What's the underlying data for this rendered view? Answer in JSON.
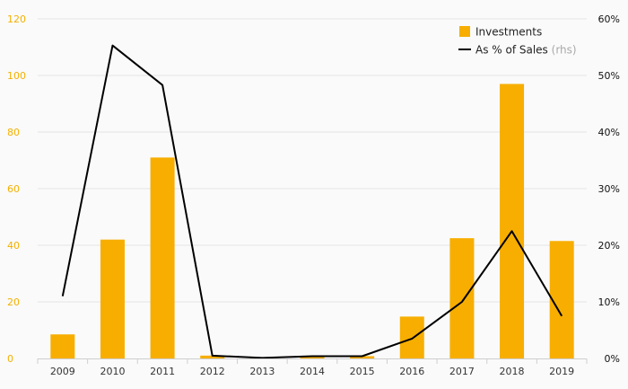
{
  "chart_data": {
    "type": "bar+line",
    "categories": [
      "2009",
      "2010",
      "2011",
      "2012",
      "2013",
      "2014",
      "2015",
      "2016",
      "2017",
      "2018",
      "2019"
    ],
    "series": [
      {
        "name": "Investments",
        "type": "bar",
        "axis": "left",
        "color": "#f7ae00",
        "values": [
          8.5,
          42,
          71,
          1,
          0.1,
          0.8,
          0.8,
          14.8,
          42.5,
          97,
          41.5
        ]
      },
      {
        "name": "As % of Sales",
        "name_note": "(rhs)",
        "type": "line",
        "axis": "right",
        "color": "#000000",
        "values": [
          11,
          55.3,
          48.3,
          0.5,
          0.1,
          0.4,
          0.4,
          3.5,
          10,
          22.5,
          7.5
        ]
      }
    ],
    "y_left": {
      "min": 0,
      "max": 120,
      "ticks": [
        "0",
        "20",
        "40",
        "60",
        "80",
        "100",
        "120"
      ],
      "color": "#f4b000"
    },
    "y_right": {
      "min": 0,
      "max": 60,
      "ticks": [
        "0%",
        "10%",
        "20%",
        "30%",
        "40%",
        "50%",
        "60%"
      ],
      "color": "#111111"
    },
    "grid": true,
    "legend_position": "top-right"
  }
}
